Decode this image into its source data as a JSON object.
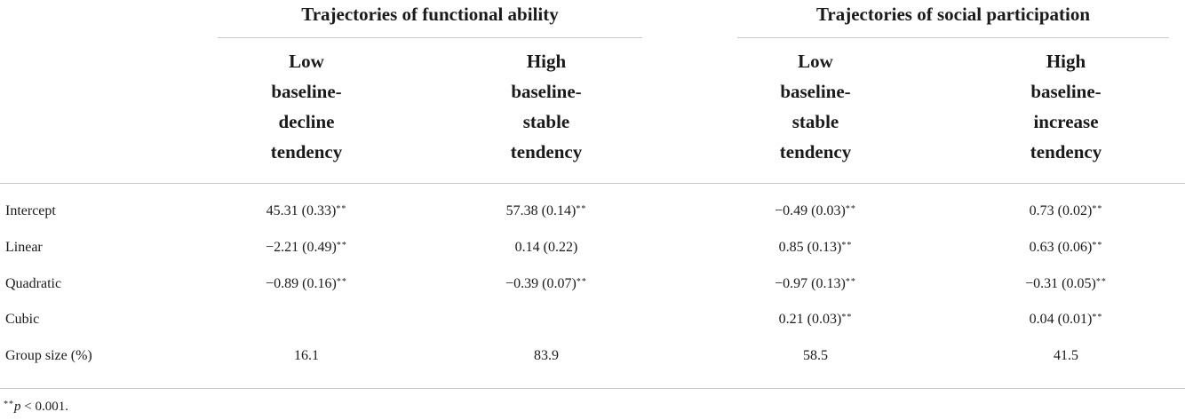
{
  "groups": [
    {
      "title": "Trajectories of functional ability"
    },
    {
      "title": "Trajectories of social participation"
    }
  ],
  "columns": [
    {
      "lines": [
        "Low",
        "baseline-",
        "decline",
        "tendency"
      ]
    },
    {
      "lines": [
        "High",
        "baseline-",
        "stable",
        "tendency"
      ]
    },
    {
      "lines": [
        "Low",
        "baseline-",
        "stable",
        "tendency"
      ]
    },
    {
      "lines": [
        "High",
        "baseline-",
        "increase",
        "tendency"
      ]
    }
  ],
  "rows": [
    {
      "label": "Intercept",
      "cells": [
        {
          "value": "45.31 (0.33)",
          "sig": "**"
        },
        {
          "value": "57.38 (0.14)",
          "sig": "**"
        },
        {
          "value": "−0.49 (0.03)",
          "sig": "**"
        },
        {
          "value": "0.73 (0.02)",
          "sig": "**"
        }
      ]
    },
    {
      "label": "Linear",
      "cells": [
        {
          "value": "−2.21 (0.49)",
          "sig": "**"
        },
        {
          "value": "0.14 (0.22)",
          "sig": ""
        },
        {
          "value": "0.85 (0.13)",
          "sig": "**"
        },
        {
          "value": "0.63 (0.06)",
          "sig": "**"
        }
      ]
    },
    {
      "label": "Quadratic",
      "cells": [
        {
          "value": "−0.89 (0.16)",
          "sig": "**"
        },
        {
          "value": "−0.39 (0.07)",
          "sig": "**"
        },
        {
          "value": "−0.97 (0.13)",
          "sig": "**"
        },
        {
          "value": "−0.31 (0.05)",
          "sig": "**"
        }
      ]
    },
    {
      "label": "Cubic",
      "cells": [
        {
          "value": "",
          "sig": ""
        },
        {
          "value": "",
          "sig": ""
        },
        {
          "value": "0.21 (0.03)",
          "sig": "**"
        },
        {
          "value": "0.04 (0.01)",
          "sig": "**"
        }
      ]
    },
    {
      "label": "Group size (%)",
      "cells": [
        {
          "value": "16.1",
          "sig": ""
        },
        {
          "value": "83.9",
          "sig": ""
        },
        {
          "value": "58.5",
          "sig": ""
        },
        {
          "value": "41.5",
          "sig": ""
        }
      ]
    }
  ],
  "footnote": {
    "marker": "**",
    "p": "p",
    "text": " < 0.001."
  }
}
